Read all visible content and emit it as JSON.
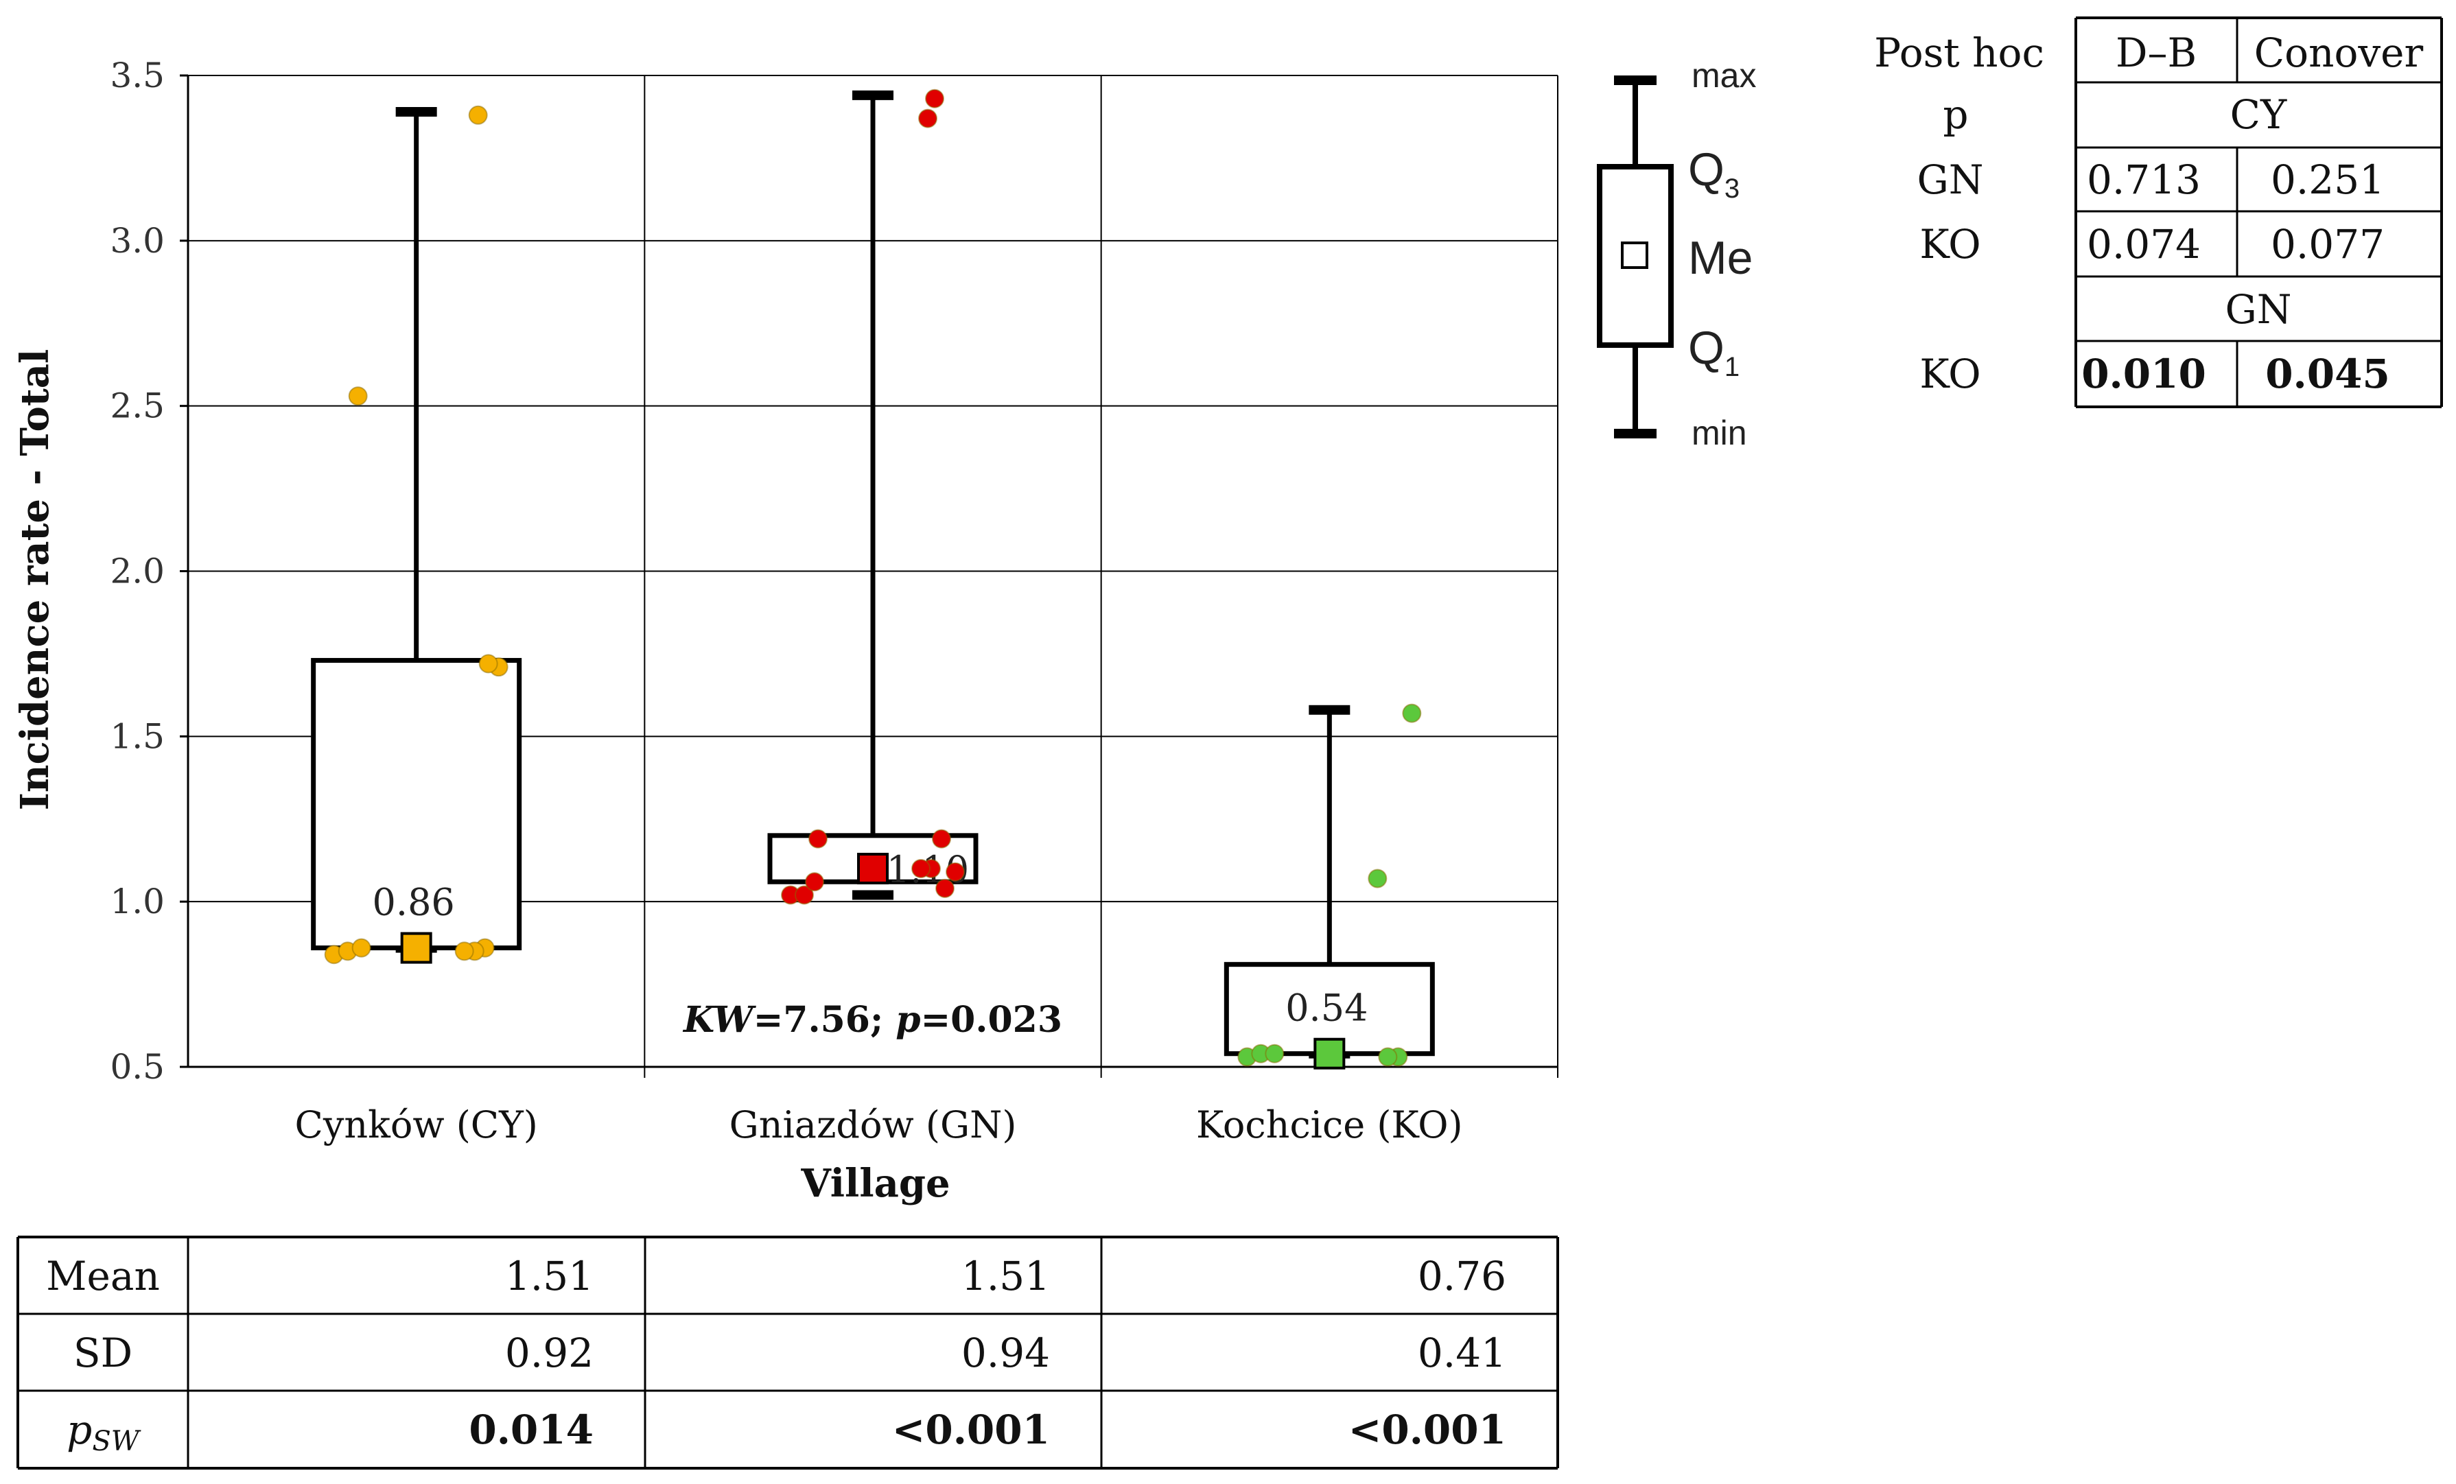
{
  "chart_data": {
    "type": "boxplot",
    "ylabel": "Incidence rate - Total",
    "xlabel": "Village",
    "ylim": [
      0.5,
      3.5
    ],
    "yticks": [
      "0.5",
      "1.0",
      "1.5",
      "2.0",
      "2.5",
      "3.0",
      "3.5"
    ],
    "grid": true,
    "annotation": {
      "kw_label": "KW",
      "kw_value": "=7.56; ",
      "p_label": "p",
      "p_value": "=0.023"
    },
    "groups": [
      {
        "category": "Cynków (CY)",
        "color": "#F5B000",
        "min": 0.86,
        "q1": 0.86,
        "median": 0.86,
        "q3": 1.73,
        "max": 3.39,
        "median_label": "0.86",
        "points": [
          0.84,
          0.85,
          0.86,
          0.86,
          0.85,
          0.85,
          1.71,
          1.72,
          2.53,
          3.38
        ]
      },
      {
        "category": "Gniazdów (GN)",
        "color": "#E00000",
        "min": 1.02,
        "q1": 1.06,
        "median": 1.1,
        "q3": 1.2,
        "max": 3.44,
        "median_label": "1.10",
        "points": [
          1.02,
          1.02,
          1.19,
          1.19,
          1.1,
          1.1,
          1.09,
          1.04,
          1.06,
          3.43,
          3.37
        ]
      },
      {
        "category": "Kochcice (KO)",
        "color": "#5CC83C",
        "min": 0.54,
        "q1": 0.54,
        "median": 0.54,
        "q3": 0.81,
        "max": 1.58,
        "median_label": "0.54",
        "points": [
          0.53,
          0.54,
          0.54,
          0.53,
          0.53,
          1.07,
          1.57
        ]
      }
    ]
  },
  "legend": {
    "max": "max",
    "q3": "Q",
    "q3_sub": "3",
    "me": "Me",
    "q1": "Q",
    "q1_sub": "1",
    "min": "min"
  },
  "posthoc_table": {
    "header": [
      "Post hoc",
      "D–B",
      "Conover"
    ],
    "p_label": "p",
    "group1": "CY",
    "rows1": [
      {
        "label": "GN",
        "db": "0.713",
        "conover": "0.251"
      },
      {
        "label": "KO",
        "db": "0.074",
        "conover": "0.077"
      }
    ],
    "group2": "GN",
    "rows2": [
      {
        "label": "KO",
        "db": "0.010",
        "conover": "0.045",
        "bold": true
      }
    ]
  },
  "stats_table": {
    "rows": [
      {
        "label": "Mean",
        "values": [
          "1.51",
          "1.51",
          "0.76"
        ],
        "bold": false
      },
      {
        "label": "SD",
        "values": [
          "0.92",
          "0.94",
          "0.41"
        ],
        "bold": false
      },
      {
        "label": "p",
        "label_sub": "SW",
        "values": [
          "0.014",
          "<0.001",
          "<0.001"
        ],
        "bold": true
      }
    ]
  }
}
